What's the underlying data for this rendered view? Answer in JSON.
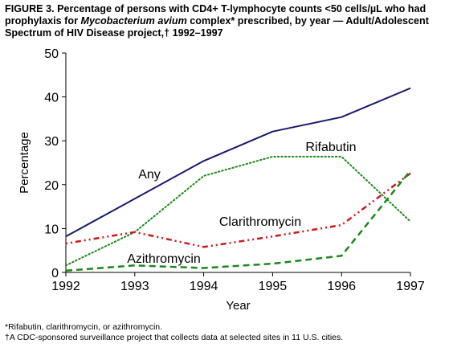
{
  "caption": {
    "part1": "FIGURE 3. Percentage of persons with CD4+ T-lymphocyte counts <50 cells/µL who had prophylaxis for ",
    "italic": "Mycobacterium avium",
    "part2": " complex* prescribed, by year — Adult/Adolescent Spectrum of HIV Disease project,† 1992–1997"
  },
  "footnotes": {
    "note1": "*Rifabutin, clarithromycin, or azithromycin.",
    "note2": "†A CDC-sponsored surveillance project that collects data at selected sites in 11 U.S. cities."
  },
  "colors": {
    "any": "#1a1a6e",
    "rifabutin": "#1a8a1a",
    "clarithromycin": "#cc1a1a",
    "azithromycin": "#1a8a1a"
  },
  "chart_data": {
    "type": "line",
    "title": "",
    "xlabel": "Year",
    "ylabel": "Percentage",
    "x": [
      1992,
      1993,
      1994,
      1995,
      1996,
      1997
    ],
    "xlim": [
      1992,
      1997
    ],
    "ylim": [
      0,
      50
    ],
    "yticks": [
      0,
      10,
      20,
      30,
      40,
      50
    ],
    "grid": false,
    "legend": "inline labels",
    "series": [
      {
        "name": "Any",
        "style": "solid",
        "values": [
          8.2,
          16.8,
          25.4,
          32.1,
          35.4,
          42.0
        ]
      },
      {
        "name": "Rifabutin",
        "style": "dotted",
        "values": [
          1.6,
          9.2,
          22.0,
          26.4,
          26.4,
          11.6
        ]
      },
      {
        "name": "Clarithromycin",
        "style": "dashdot",
        "values": [
          6.6,
          9.2,
          5.8,
          8.2,
          10.8,
          22.6
        ]
      },
      {
        "name": "Azithromycin",
        "style": "dashed",
        "values": [
          0.4,
          1.6,
          1.0,
          2.0,
          3.8,
          23.2
        ]
      }
    ]
  }
}
